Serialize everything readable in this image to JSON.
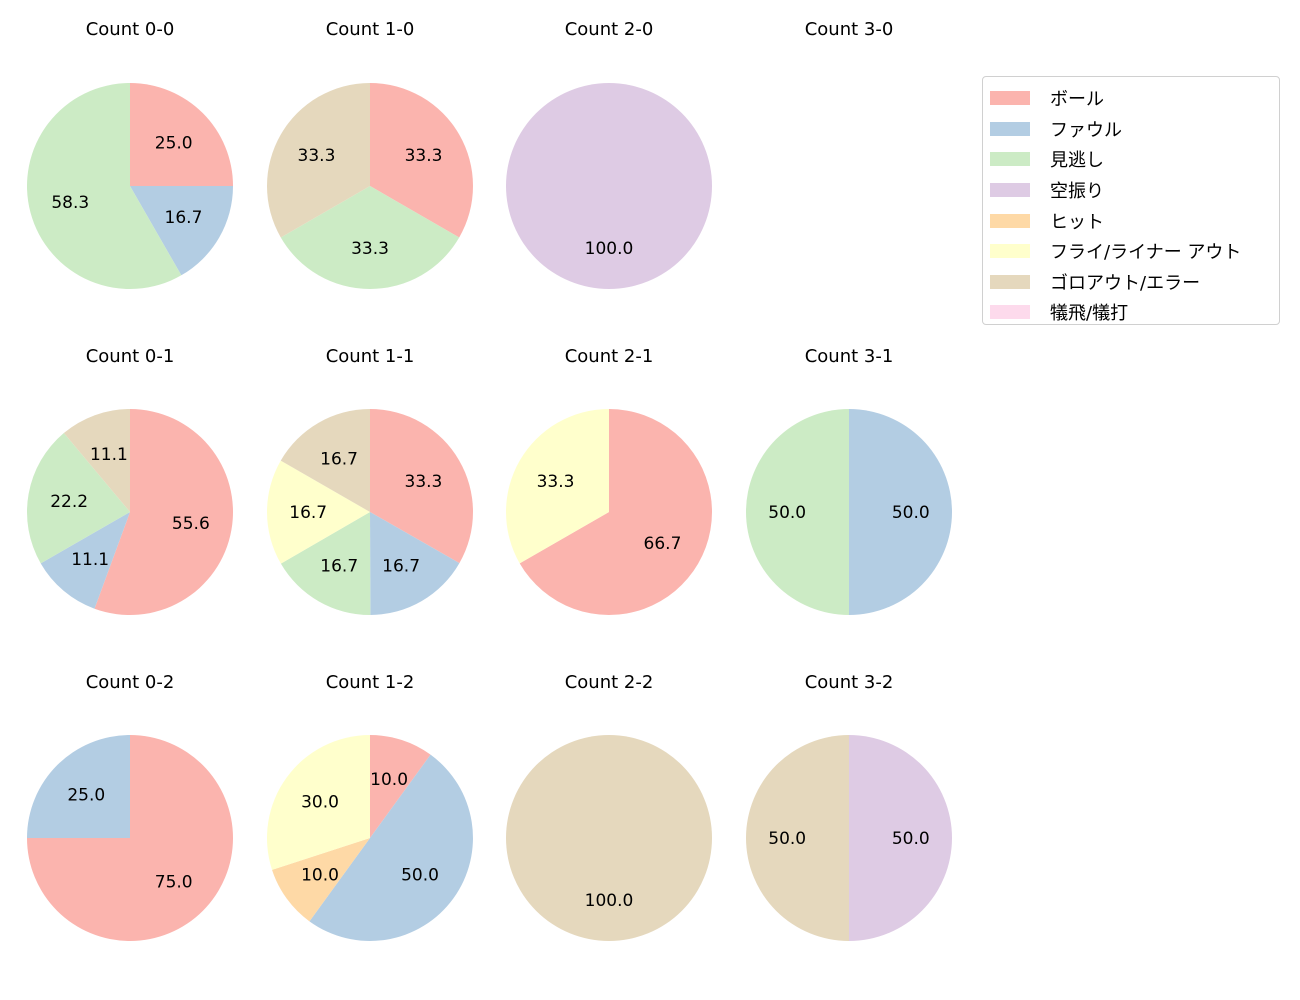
{
  "chart_data": {
    "type": "pie",
    "start_angle": 90,
    "direction": "clockwise",
    "label_format": "percent, 1 decimal",
    "categories": [
      "ボール",
      "ファウル",
      "見逃し",
      "空振り",
      "ヒット",
      "フライ/ライナー アウト",
      "ゴロアウト/エラー",
      "犠飛/犠打"
    ],
    "colors": [
      "#fbb4ae",
      "#b3cde3",
      "#ccebc5",
      "#decbe4",
      "#fed9a6",
      "#ffffcc",
      "#e5d8bd",
      "#fddaec"
    ],
    "legend_position": "right",
    "pies": [
      {
        "title": "Count 0-0",
        "values": [
          25.0,
          16.7,
          58.3,
          0,
          0,
          0,
          0,
          0
        ]
      },
      {
        "title": "Count 1-0",
        "values": [
          33.3,
          0,
          33.3,
          0,
          0,
          0,
          33.3,
          0
        ]
      },
      {
        "title": "Count 2-0",
        "values": [
          0,
          0,
          0,
          100.0,
          0,
          0,
          0,
          0
        ]
      },
      {
        "title": "Count 3-0",
        "values": []
      },
      {
        "title": "Count 0-1",
        "values": [
          55.6,
          11.1,
          22.2,
          0,
          0,
          0,
          11.1,
          0
        ]
      },
      {
        "title": "Count 1-1",
        "values": [
          33.3,
          16.7,
          16.7,
          0,
          0,
          16.7,
          16.7,
          0
        ]
      },
      {
        "title": "Count 2-1",
        "values": [
          66.7,
          0,
          0,
          0,
          0,
          33.3,
          0,
          0
        ]
      },
      {
        "title": "Count 3-1",
        "values": [
          0,
          50.0,
          50.0,
          0,
          0,
          0,
          0,
          0
        ]
      },
      {
        "title": "Count 0-2",
        "values": [
          75.0,
          25.0,
          0,
          0,
          0,
          0,
          0,
          0
        ]
      },
      {
        "title": "Count 1-2",
        "values": [
          10.0,
          50.0,
          0,
          0,
          10.0,
          30.0,
          0,
          0
        ]
      },
      {
        "title": "Count 2-2",
        "values": [
          0,
          0,
          0,
          0,
          0,
          0,
          100.0,
          0
        ]
      },
      {
        "title": "Count 3-2",
        "values": [
          0,
          0,
          0,
          50.0,
          0,
          0,
          50.0,
          0
        ]
      }
    ]
  }
}
